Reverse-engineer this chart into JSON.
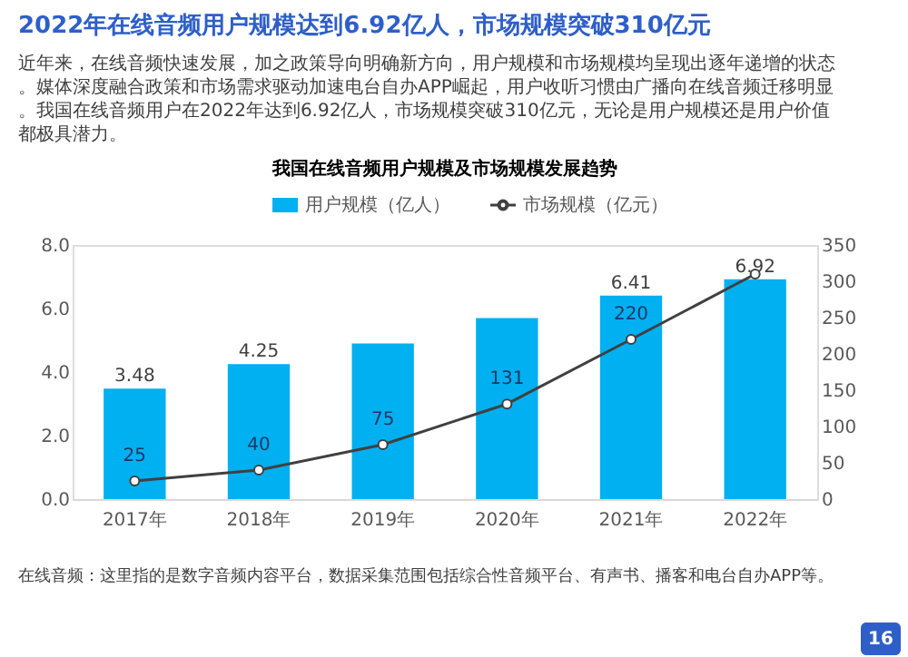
{
  "chart_data": {
    "type": "bar",
    "title": "2022年在线音频用户规模达到6.92亿人，市场规模突破310亿元",
    "subtitle": "近年来，在线音频快速发展，加之政策导向明确新方向，用户规模和市场规模均呈现出逐年递增的状态。媒体深度融合政策和市场需求驱动加速电台自办APP崛起，用户收听习惯由广播向在线音频迁移明显。我国在线音频用户在2022年达到6.92亿人，市场规模突破310亿元，无论是用户规模还是用户价值都极具潜力。",
    "annotations": [
      "我国在线音频用户规模及市场规模发展趋势",
      "在线音频：这里指的是数字音频内容平台，数据采集范围包括综合性音频平台、有声书、播客和电台自办APP等。",
      "16"
    ],
    "categories": [
      "2017年",
      "2018年",
      "2019年",
      "2020年",
      "2021年",
      "2022年"
    ],
    "series": [
      {
        "name": "用户规模（亿人）",
        "color": "#00b0f0",
        "values": [
          3.48,
          4.25,
          4.9,
          5.7,
          6.41,
          6.92
        ],
        "value_labels": [
          "3.48",
          "4.25",
          null,
          null,
          "6.41",
          "6.92"
        ]
      },
      {
        "name": "市场规模（亿元）",
        "type": "line",
        "axis": "y2",
        "color": "#404040",
        "marker": "circle",
        "values": [
          25,
          40,
          75,
          131,
          220,
          310
        ],
        "value_labels": [
          "25",
          "40",
          "75",
          "131",
          "220",
          null
        ]
      }
    ],
    "ylim": [
      0,
      8
    ],
    "yticks": [
      {
        "value": 0,
        "label": "0.0"
      },
      {
        "value": 2,
        "label": "2.0"
      },
      {
        "value": 4,
        "label": "4.0"
      },
      {
        "value": 6,
        "label": "6.0"
      },
      {
        "value": 8,
        "label": "8.0"
      }
    ],
    "y2lim": [
      0,
      350
    ],
    "y2ticks": [
      0,
      50,
      100,
      150,
      200,
      250,
      300,
      350
    ],
    "legend": "top"
  }
}
